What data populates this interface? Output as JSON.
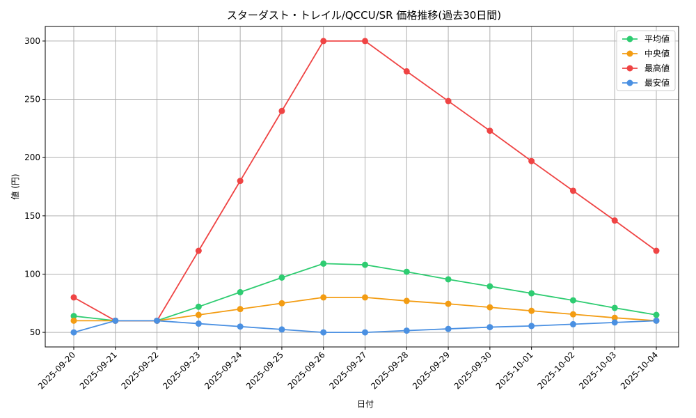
{
  "chart_data": {
    "type": "line",
    "title": "スターダスト・トレイル/QCCU/SR 価格推移(過去30日間)",
    "xlabel": "日付",
    "ylabel": "値 (円)",
    "categories": [
      "2025-09-20",
      "2025-09-21",
      "2025-09-22",
      "2025-09-23",
      "2025-09-24",
      "2025-09-25",
      "2025-09-26",
      "2025-09-27",
      "2025-09-28",
      "2025-09-29",
      "2025-09-30",
      "2025-10-01",
      "2025-10-02",
      "2025-10-03",
      "2025-10-04"
    ],
    "ylim": [
      37.5,
      312.5
    ],
    "yticks": [
      50,
      100,
      150,
      200,
      250,
      300
    ],
    "grid": true,
    "legend_position": "top-right",
    "series": [
      {
        "name": "平均値",
        "color": "#2ecc71",
        "values": [
          64,
          60,
          60,
          72,
          84.5,
          97,
          109,
          108,
          102,
          95.5,
          89.5,
          83.5,
          77.5,
          71,
          65
        ]
      },
      {
        "name": "中央値",
        "color": "#f39c12",
        "values": [
          60,
          60,
          60,
          65,
          70,
          75,
          80,
          80,
          77,
          74.5,
          71.5,
          68.5,
          65.5,
          62.5,
          60
        ]
      },
      {
        "name": "最高値",
        "color": "#ef4444",
        "values": [
          80,
          60,
          60,
          120,
          180,
          240,
          300,
          300,
          274,
          248.5,
          223,
          197,
          171.5,
          146,
          120
        ]
      },
      {
        "name": "最安値",
        "color": "#4a90e2",
        "values": [
          50,
          60,
          60,
          57.5,
          55,
          52.5,
          50,
          50,
          51.5,
          53,
          54.5,
          55.5,
          57,
          58.5,
          60
        ]
      }
    ]
  }
}
